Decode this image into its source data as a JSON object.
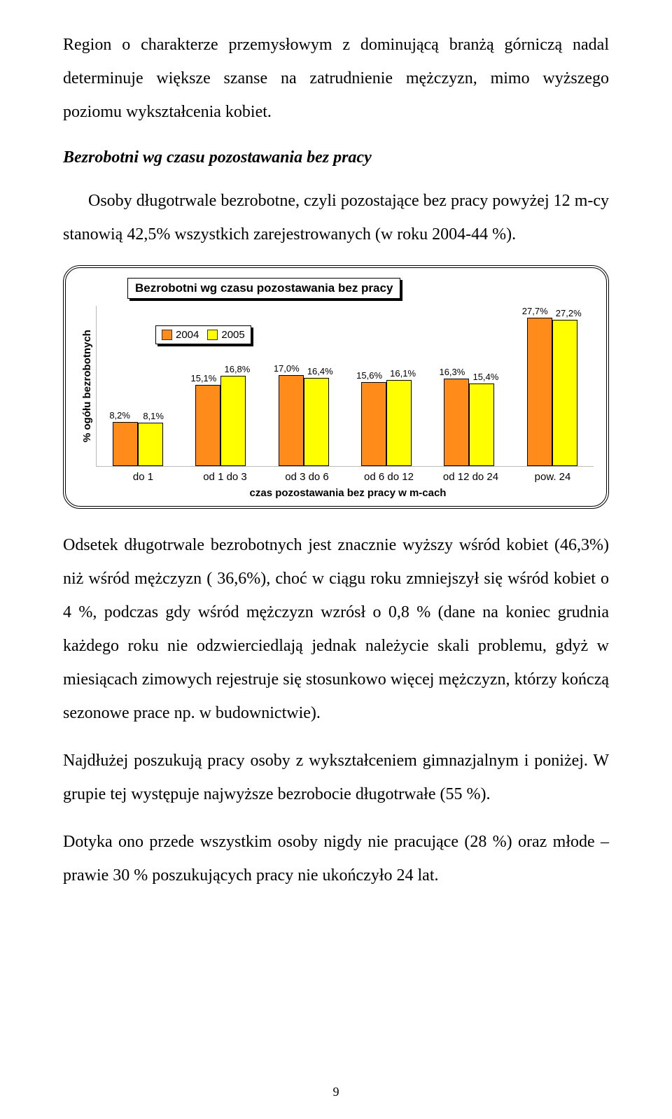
{
  "text": {
    "p1": "Region o charakterze przemysłowym z dominującą branżą górniczą nadal determinuje większe szanse na zatrudnienie mężczyzn, mimo wyższego poziomu wykształcenia kobiet.",
    "heading": "Bezrobotni wg czasu pozostawania bez pracy",
    "p2": "Osoby długotrwale bezrobotne, czyli pozostające bez pracy powyżej 12 m-cy stanowią 42,5% wszystkich zarejestrowanych (w roku 2004-44 %).",
    "p3": "Odsetek długotrwale bezrobotnych jest znacznie wyższy wśród kobiet (46,3%) niż wśród mężczyzn ( 36,6%), choć w ciągu roku zmniejszył się wśród kobiet o 4 %, podczas gdy wśród mężczyzn wzrósł o 0,8 % (dane na koniec grudnia każdego roku nie odzwierciedlają jednak należycie skali problemu, gdyż w miesiącach zimowych rejestruje się stosunkowo więcej mężczyzn, którzy kończą sezonowe prace np. w budownictwie).",
    "p4": "Najdłużej poszukują pracy osoby z wykształceniem gimnazjalnym i poniżej. W grupie tej występuje najwyższe bezrobocie długotrwałe (55 %).",
    "p5": "Dotyka ono przede wszystkim osoby nigdy nie pracujące (28 %) oraz młode – prawie 30 % poszukujących pracy nie ukończyło 24 lat.",
    "page_number": "9"
  },
  "chart": {
    "type": "bar",
    "title": "Bezrobotni wg czasu pozostawania bez pracy",
    "ylabel": "% ogółu bezrobotnych",
    "xlabel": "czas pozostawania bez pracy w m-cach",
    "legend": {
      "series_a": "2004",
      "series_b": "2005"
    },
    "colors": {
      "series_a": "#ff8c1a",
      "series_b": "#ffff00",
      "bar_border": "#000000",
      "frame_border": "#000000",
      "axis": "#bbbbbb",
      "background": "#ffffff"
    },
    "ymax": 30,
    "categories": [
      {
        "label": "do 1",
        "a": 8.2,
        "a_label": "8,2%",
        "b": 8.1,
        "b_label": "8,1%"
      },
      {
        "label": "od 1 do 3",
        "a": 15.1,
        "a_label": "15,1%",
        "b": 16.8,
        "b_label": "16,8%"
      },
      {
        "label": "od 3 do 6",
        "a": 17.0,
        "a_label": "17,0%",
        "b": 16.4,
        "b_label": "16,4%"
      },
      {
        "label": "od 6 do 12",
        "a": 15.6,
        "a_label": "15,6%",
        "b": 16.1,
        "b_label": "16,1%"
      },
      {
        "label": "od 12 do 24",
        "a": 16.3,
        "a_label": "16,3%",
        "b": 15.4,
        "b_label": "15,4%"
      },
      {
        "label": "pow. 24",
        "a": 27.7,
        "a_label": "27,7%",
        "b": 27.2,
        "b_label": "27,2%"
      }
    ]
  }
}
